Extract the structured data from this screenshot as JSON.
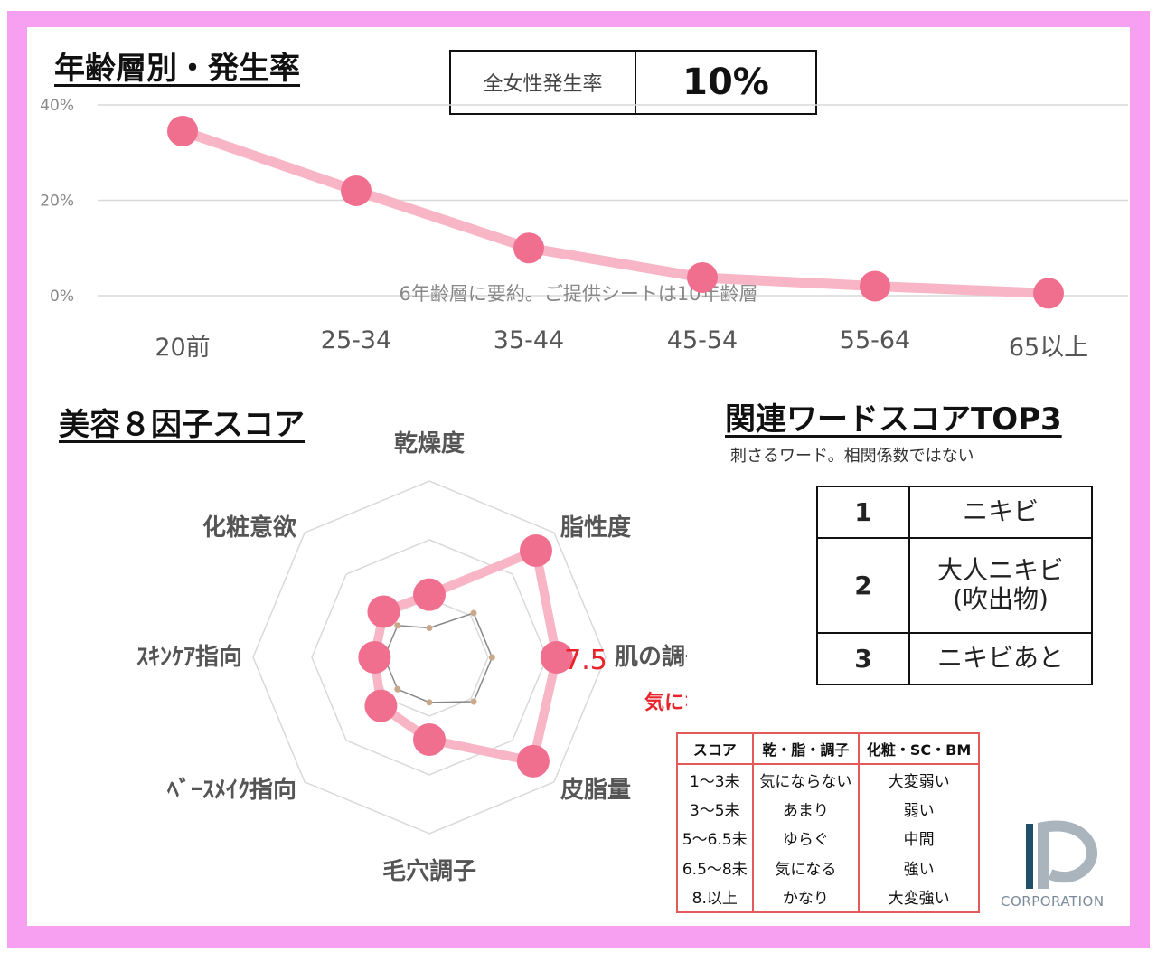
{
  "age_section": {
    "title": "年齢層別・発生率",
    "rate_label": "全女性発生率",
    "rate_value": "10%",
    "note": "6年齢層に要約。ご提供シートは10年齢層"
  },
  "factor_section": {
    "title": "美容８因子スコア",
    "highlight_value": "7.5",
    "highlight_label": "気になる"
  },
  "words_section": {
    "title": "関連ワードスコアTOP3",
    "subtitle": "刺さるワード。相関係数ではない",
    "rows": [
      {
        "rank": "1",
        "word": "ニキビ",
        "word2": ""
      },
      {
        "rank": "2",
        "word": "大人ニキビ",
        "word2": "(吹出物)"
      },
      {
        "rank": "3",
        "word": "ニキビあと",
        "word2": ""
      }
    ]
  },
  "score_legend": {
    "headers": [
      "スコア",
      "乾・脂・調子",
      "化粧・SC・BM"
    ],
    "rows": [
      [
        "1～3未",
        "気にならない",
        "大変弱い"
      ],
      [
        "3～5未",
        "あまり",
        "弱い"
      ],
      [
        "5～6.5未",
        "ゆらぐ",
        "中間"
      ],
      [
        "6.5～8未",
        "気になる",
        "強い"
      ],
      [
        "8.以上",
        "かなり",
        "大変強い"
      ]
    ]
  },
  "logo": {
    "text": "CORPORATION"
  },
  "colors": {
    "accent": "#f06f8e",
    "line": "#f8b5c5",
    "highlight": "#e8232a",
    "frame": "#f7a0f2"
  },
  "chart_data": [
    {
      "type": "line",
      "categories": [
        "20前",
        "25-34",
        "35-44",
        "45-54",
        "55-64",
        "65以上"
      ],
      "values": [
        34.5,
        22,
        10,
        3.8,
        2,
        0.5
      ],
      "y_ticks": [
        "0%",
        "20%",
        "40%"
      ],
      "ylim": [
        0,
        40
      ],
      "grid": true
    },
    {
      "type": "radar",
      "axes": [
        "乾燥度",
        "脂性度",
        "肌の調子",
        "皮脂量",
        "毛穴調子",
        "ﾍﾞｰｽﾒｲｸ指向",
        "ｽｷﾝｹｱ指向",
        "化粧意欲"
      ],
      "values": [
        4.2,
        8.7,
        7.5,
        8.5,
        5.2,
        4.5,
        3.8,
        4.3
      ],
      "reference": [
        2.5,
        4.2,
        4.2,
        4.2,
        3.3,
        3.3,
        3.3,
        3.3
      ],
      "range": [
        1,
        10
      ]
    }
  ]
}
